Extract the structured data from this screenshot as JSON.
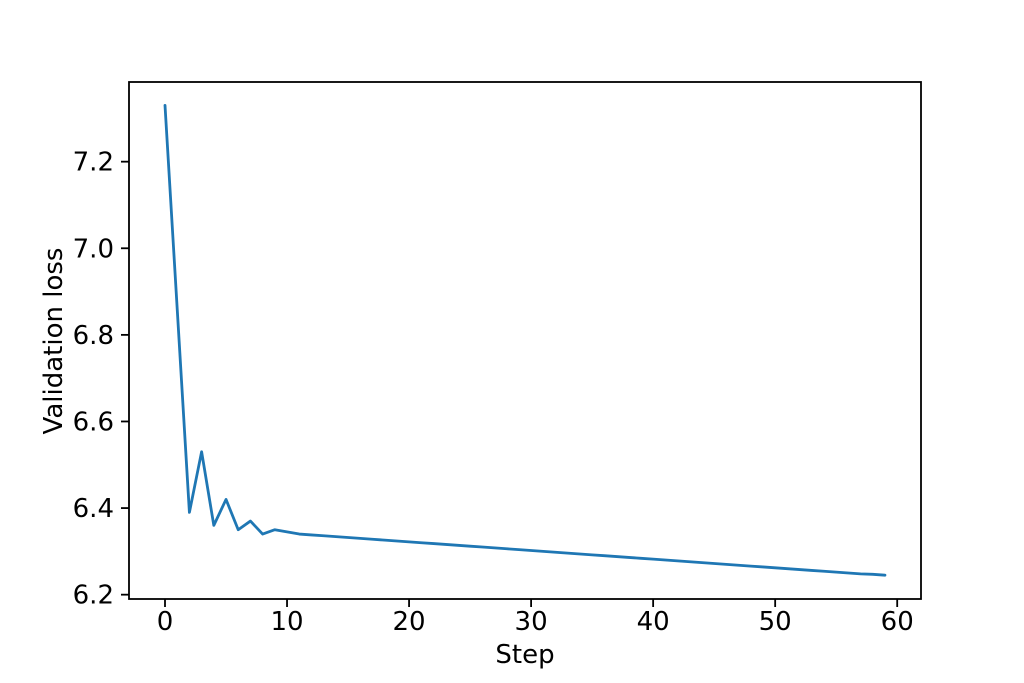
{
  "figure": {
    "background_color": "#ffffff",
    "text_color": "#000000",
    "spine_color": "#000000"
  },
  "chart_data": {
    "type": "line",
    "title": "",
    "xlabel": "Step",
    "ylabel": "Validation loss",
    "grid": false,
    "legend_position": "none",
    "xlim": [
      -2.95,
      61.95
    ],
    "ylim": [
      6.19,
      7.384
    ],
    "xticks": [
      0,
      10,
      20,
      30,
      40,
      50,
      60
    ],
    "xtick_labels": [
      "0",
      "10",
      "20",
      "30",
      "40",
      "50",
      "60"
    ],
    "yticks": [
      6.2,
      6.4,
      6.6,
      6.8,
      7.0,
      7.2
    ],
    "ytick_labels": [
      "6.2",
      "6.4",
      "6.6",
      "6.8",
      "7.0",
      "7.2"
    ],
    "x": [
      0,
      1,
      2,
      3,
      4,
      5,
      6,
      7,
      8,
      9,
      10,
      11,
      12,
      13,
      14,
      15,
      16,
      17,
      18,
      19,
      20,
      21,
      22,
      23,
      24,
      25,
      26,
      27,
      28,
      29,
      30,
      31,
      32,
      33,
      34,
      35,
      36,
      37,
      38,
      39,
      40,
      41,
      42,
      43,
      44,
      45,
      46,
      47,
      48,
      49,
      50,
      51,
      52,
      53,
      54,
      55,
      56,
      57,
      58,
      59
    ],
    "series": [
      {
        "name": "validation-loss",
        "color": "#1f77b4",
        "values": [
          7.33,
          6.86,
          6.39,
          6.53,
          6.36,
          6.42,
          6.35,
          6.37,
          6.34,
          6.35,
          6.345,
          6.34,
          6.338,
          6.336,
          6.334,
          6.332,
          6.33,
          6.328,
          6.326,
          6.324,
          6.322,
          6.32,
          6.318,
          6.316,
          6.314,
          6.312,
          6.31,
          6.308,
          6.306,
          6.304,
          6.302,
          6.3,
          6.298,
          6.296,
          6.294,
          6.292,
          6.29,
          6.288,
          6.286,
          6.284,
          6.282,
          6.28,
          6.278,
          6.276,
          6.274,
          6.272,
          6.27,
          6.268,
          6.266,
          6.264,
          6.262,
          6.26,
          6.258,
          6.256,
          6.254,
          6.252,
          6.25,
          6.248,
          6.247,
          6.245
        ]
      }
    ]
  }
}
